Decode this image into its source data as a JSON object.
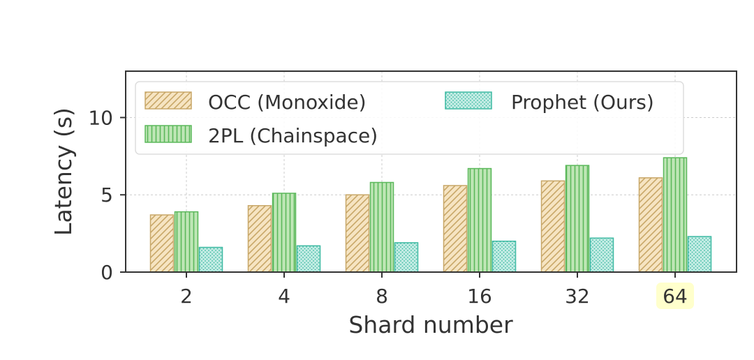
{
  "chart_data": {
    "type": "bar",
    "xlabel": "Shard number",
    "ylabel": "Latency (s)",
    "categories": [
      "2",
      "4",
      "8",
      "16",
      "32",
      "64"
    ],
    "highlighted_category": "64",
    "ylim": [
      0,
      13
    ],
    "yticks": [
      0,
      5,
      10
    ],
    "grid": true,
    "legend_position": "top-left",
    "series": [
      {
        "name": "OCC (Monoxide)",
        "values": [
          3.7,
          4.3,
          5.0,
          5.6,
          5.9,
          6.1
        ],
        "color": "#c8a768",
        "fill": "#f6e4c2",
        "pattern": "diagonal-hatch"
      },
      {
        "name": "2PL (Chainspace)",
        "values": [
          3.9,
          5.1,
          5.8,
          6.7,
          6.9,
          7.4
        ],
        "color": "#5bb85b",
        "fill": "#bfe6b6",
        "pattern": "vertical-lines"
      },
      {
        "name": "Prophet (Ours)",
        "values": [
          1.6,
          1.7,
          1.9,
          2.0,
          2.2,
          2.3
        ],
        "color": "#3cb9a2",
        "fill": "#c3ece4",
        "pattern": "dots"
      }
    ],
    "highlight_color": "#ffffcc"
  }
}
